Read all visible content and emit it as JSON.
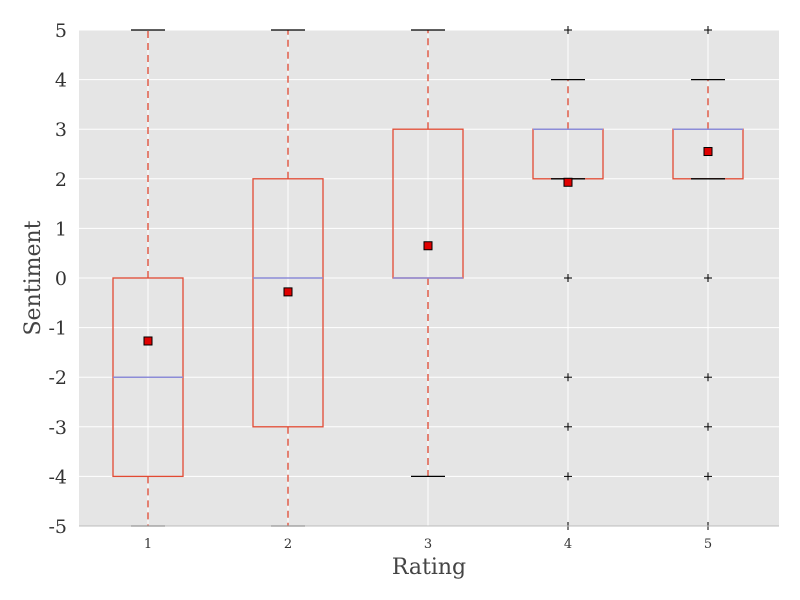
{
  "chart_data": {
    "type": "box",
    "title": "",
    "xlabel": "Rating",
    "ylabel": "Sentiment",
    "ylim": [
      -5,
      5
    ],
    "yticks": [
      5,
      4,
      3,
      2,
      1,
      0,
      -1,
      -2,
      -3,
      -4,
      -5
    ],
    "ytick_labels": [
      "5",
      "4",
      "3",
      "2",
      "1",
      "0",
      "-1",
      "-2",
      "-3",
      "-4",
      "-5"
    ],
    "categories": [
      "1",
      "2",
      "3",
      "4",
      "5"
    ],
    "boxes": [
      {
        "category": "1",
        "q1": -4,
        "median": -2,
        "q3": 0,
        "whisker_low": -5,
        "whisker_high": 5,
        "mean": -1.27,
        "outliers": []
      },
      {
        "category": "2",
        "q1": -3,
        "median": 0,
        "q3": 2,
        "whisker_low": -5,
        "whisker_high": 5,
        "mean": -0.28,
        "outliers": []
      },
      {
        "category": "3",
        "q1": 0,
        "median": 0,
        "q3": 3,
        "whisker_low": -4,
        "whisker_high": 5,
        "mean": 0.65,
        "outliers": []
      },
      {
        "category": "4",
        "q1": 2,
        "median": 3,
        "q3": 3,
        "whisker_low": 2,
        "whisker_high": 4,
        "mean": 1.93,
        "outliers": [
          5,
          0,
          -2,
          -3,
          -4,
          -5
        ]
      },
      {
        "category": "5",
        "q1": 2,
        "median": 3,
        "q3": 3,
        "whisker_low": 2,
        "whisker_high": 4,
        "mean": 2.55,
        "outliers": [
          5,
          0,
          -2,
          -3,
          -4,
          -5
        ]
      }
    ],
    "grid": true,
    "colors": {
      "background": "#e5e5e5",
      "grid": "#ffffff",
      "box": "#e24a33",
      "whisker": "#e24a33",
      "median": "#8c8cd8",
      "cap": "#000000",
      "mean_fill": "#e00000",
      "mean_edge": "#000000",
      "outlier": "#000000"
    }
  }
}
